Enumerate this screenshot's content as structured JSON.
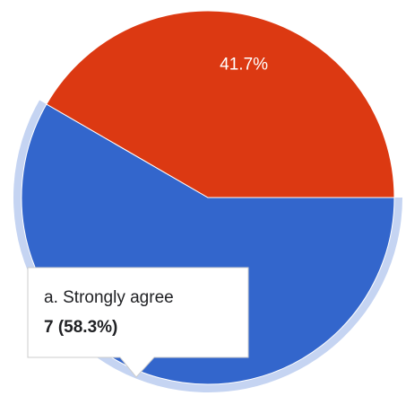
{
  "chart_data": {
    "type": "pie",
    "slices": [
      {
        "label": "a. Strongly agree",
        "count": 7,
        "percent": 58.3,
        "color": "#3366cc",
        "display_label": ""
      },
      {
        "label": "",
        "count": 5,
        "percent": 41.7,
        "color": "#dc3912",
        "display_label": "41.7%"
      }
    ],
    "highlight_color": "#c5d4f2",
    "tooltip": {
      "title": "a. Strongly agree",
      "value": "7 (58.3%)"
    }
  }
}
